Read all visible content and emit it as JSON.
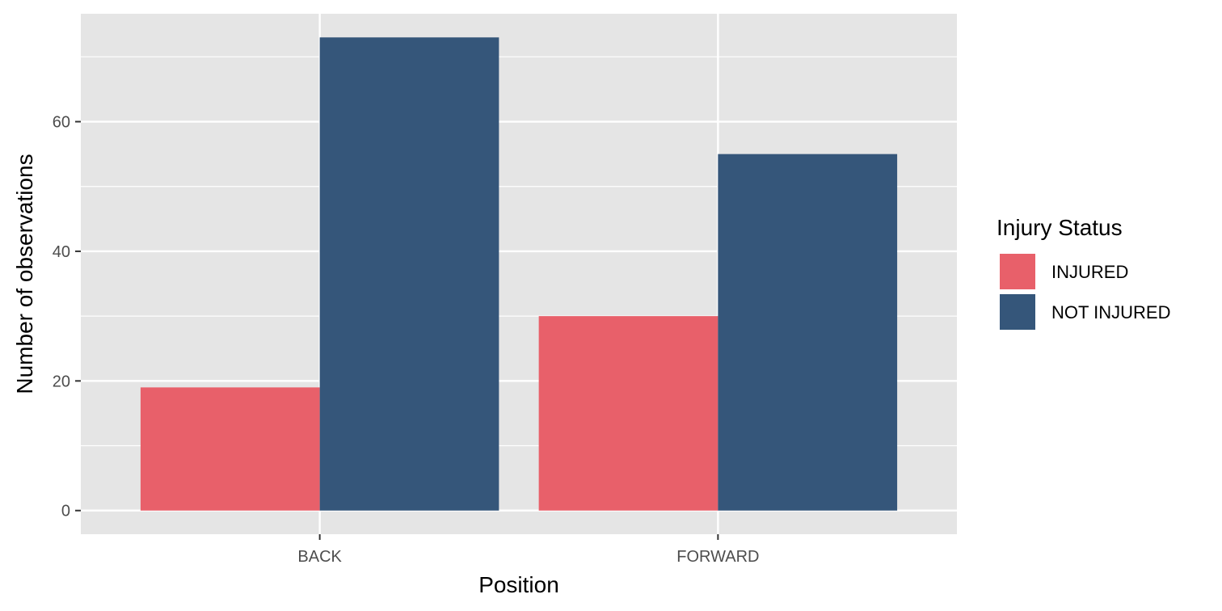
{
  "chart_data": {
    "type": "bar",
    "categories": [
      "BACK",
      "FORWARD"
    ],
    "series": [
      {
        "name": "INJURED",
        "values": [
          19,
          30
        ],
        "color": "#E8606A"
      },
      {
        "name": "NOT INJURED",
        "values": [
          73,
          55
        ],
        "color": "#35567A"
      }
    ],
    "xlabel": "Position",
    "ylabel": "Number of observations",
    "ylim": [
      -3.65,
      76.65
    ],
    "yticks": [
      0,
      20,
      40,
      60
    ],
    "legend": {
      "title": "Injury Status",
      "position": "right"
    },
    "grid": true,
    "panel_background": "#E5E5E5",
    "grid_color": "#FFFFFF"
  }
}
